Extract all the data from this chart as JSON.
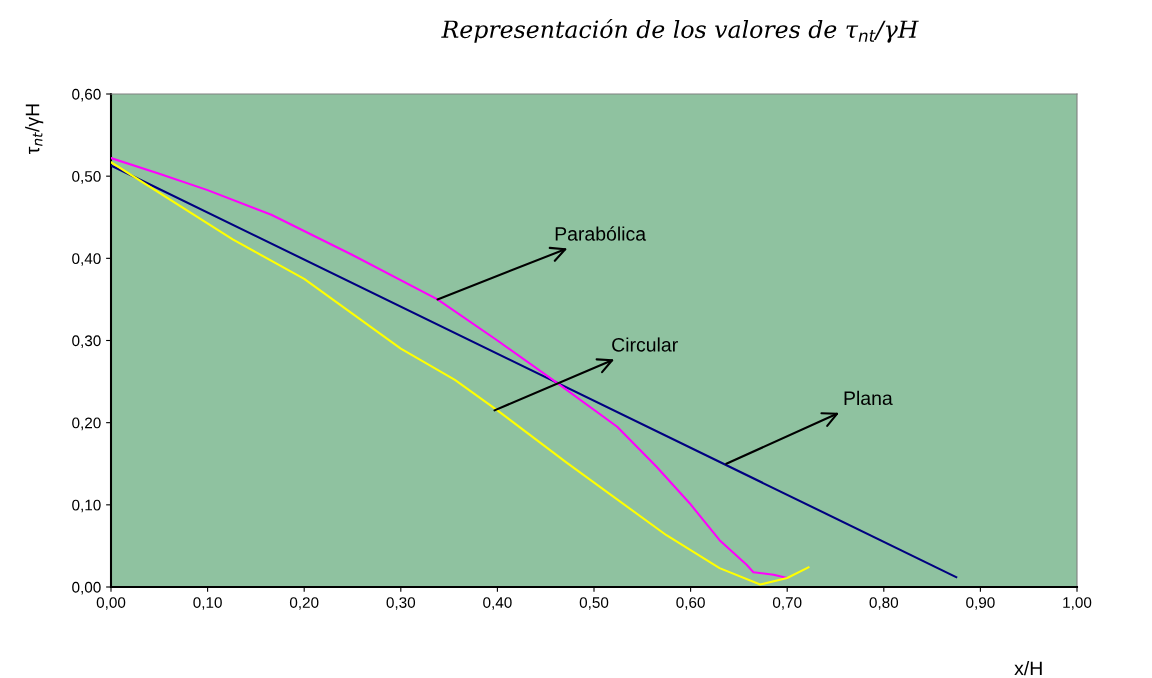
{
  "chart_data": {
    "type": "line",
    "title": "Representación de los valores de τ$_{nt}$/γH",
    "xlabel": "x/H",
    "ylabel": "τ$_{nt}$/γH",
    "series": [
      {
        "color": "#000080",
        "x": [
          0.0,
          0.875
        ],
        "values": [
          0.513,
          0.012
        ]
      },
      {
        "color": "#ff00ff",
        "x": [
          0.0,
          0.05,
          0.1,
          0.166,
          0.25,
          0.338,
          0.4,
          0.461,
          0.524,
          0.565,
          0.599,
          0.63,
          0.658,
          0.665,
          0.686,
          0.7
        ],
        "values": [
          0.522,
          0.503,
          0.483,
          0.453,
          0.404,
          0.35,
          0.3,
          0.249,
          0.195,
          0.146,
          0.102,
          0.057,
          0.027,
          0.018,
          0.015,
          0.011
        ]
      },
      {
        "color": "#ffff00",
        "x": [
          0.0,
          0.126,
          0.2,
          0.3,
          0.356,
          0.4,
          0.472,
          0.575,
          0.63,
          0.672,
          0.7,
          0.722
        ],
        "values": [
          0.517,
          0.423,
          0.375,
          0.29,
          0.252,
          0.215,
          0.151,
          0.063,
          0.023,
          0.003,
          0.011,
          0.024
        ]
      }
    ],
    "annotations": [
      {
        "text": "Parabólica",
        "x": 0.338,
        "y": 0.35
      },
      {
        "text": "Circular",
        "x": 0.397,
        "y": 0.215
      },
      {
        "text": "Plana",
        "x": 0.637,
        "y": 0.15
      }
    ],
    "xlim": [
      0,
      1.0
    ],
    "ylim": [
      0,
      0.6
    ],
    "xticks": [
      {
        "value": 0,
        "label": "0,00"
      },
      {
        "value": 0.1,
        "label": "0,10"
      },
      {
        "value": 0.2,
        "label": "0,20"
      },
      {
        "value": 0.3,
        "label": "0,30"
      },
      {
        "value": 0.4,
        "label": "0,40"
      },
      {
        "value": 0.5,
        "label": "0,50"
      },
      {
        "value": 0.6,
        "label": "0,60"
      },
      {
        "value": 0.7,
        "label": "0,70"
      },
      {
        "value": 0.8,
        "label": "0,80"
      },
      {
        "value": 0.9,
        "label": "0,90"
      },
      {
        "value": 1.0,
        "label": "1,00"
      }
    ],
    "yticks": [
      {
        "value": 0,
        "label": "0,00"
      },
      {
        "value": 0.1,
        "label": "0,10"
      },
      {
        "value": 0.2,
        "label": "0,20"
      },
      {
        "value": 0.3,
        "label": "0,30"
      },
      {
        "value": 0.4,
        "label": "0,40"
      },
      {
        "value": 0.5,
        "label": "0,50"
      },
      {
        "value": 0.6,
        "label": "0,60"
      }
    ],
    "grid": false,
    "marker": "none",
    "line_style": "solid"
  }
}
